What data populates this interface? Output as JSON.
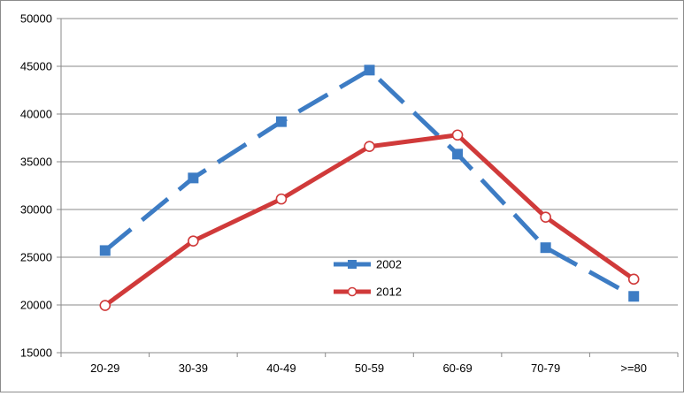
{
  "chart_data": {
    "type": "line",
    "categories": [
      "20-29",
      "30-39",
      "40-49",
      "50-59",
      "60-69",
      "70-79",
      ">=80"
    ],
    "series": [
      {
        "name": "2002",
        "values": [
          25700,
          33300,
          39200,
          44600,
          35800,
          26000,
          20900
        ],
        "color": "#3d7cc4",
        "line_style": "dashed",
        "marker": "square"
      },
      {
        "name": "2012",
        "values": [
          19950,
          26700,
          31100,
          36600,
          37800,
          29200,
          22700
        ],
        "color": "#d03a3a",
        "line_style": "solid",
        "marker": "open-circle"
      }
    ],
    "ylim": [
      15000,
      50000
    ],
    "yticks": [
      15000,
      20000,
      25000,
      30000,
      35000,
      40000,
      45000,
      50000
    ],
    "title": "",
    "xlabel": "",
    "ylabel": "",
    "grid": true,
    "legend_placement": "center"
  }
}
